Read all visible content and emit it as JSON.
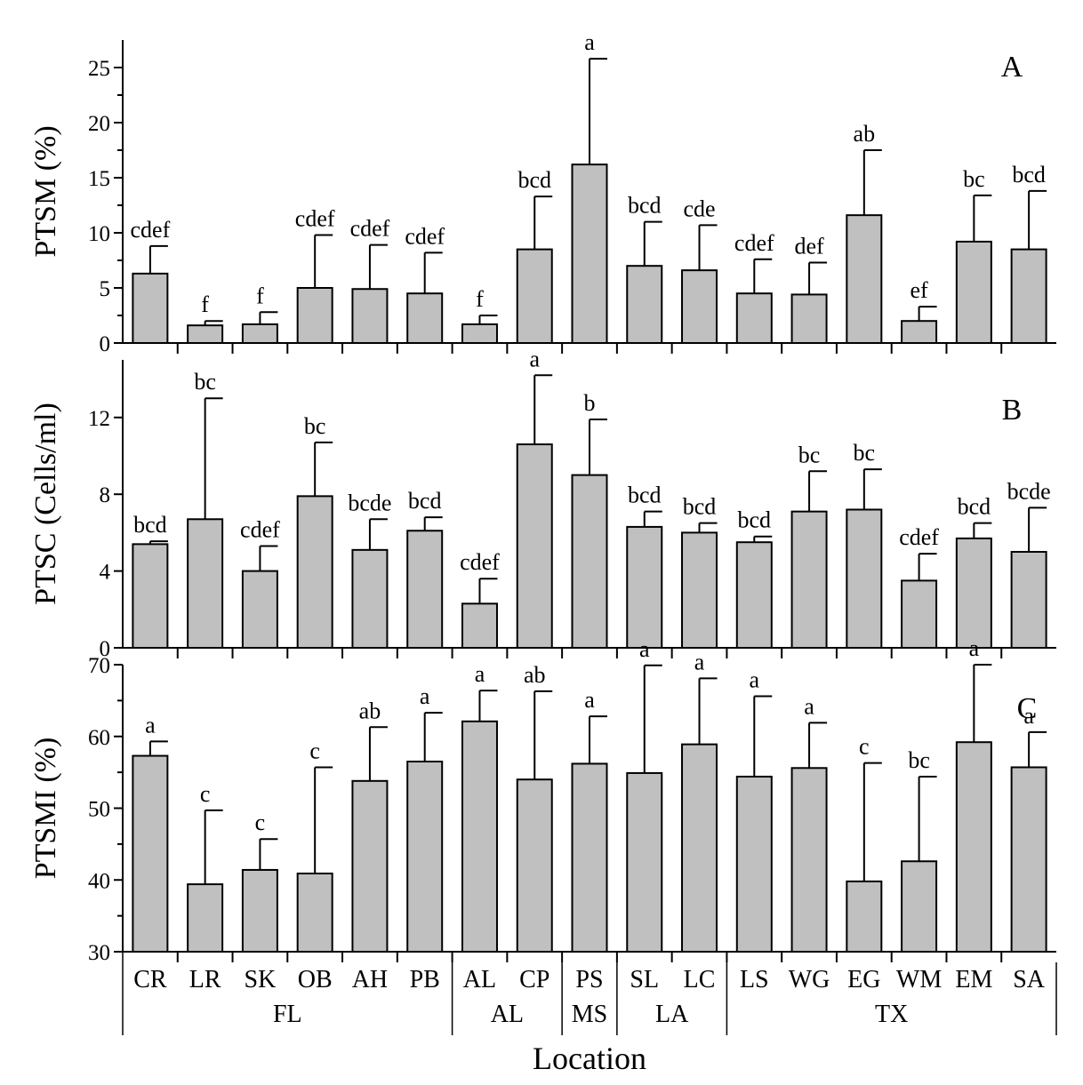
{
  "chart_data": [
    {
      "type": "bar",
      "panel": "A",
      "ylabel": "PTSM (%)",
      "ylim": [
        0,
        27.5
      ],
      "yticks": [
        0,
        5,
        10,
        15,
        20,
        25
      ],
      "categories": [
        "CR",
        "LR",
        "SK",
        "OB",
        "AH",
        "PB",
        "AL",
        "CP",
        "PS",
        "SL",
        "LC",
        "LS",
        "WG",
        "EG",
        "WM",
        "EM",
        "SA"
      ],
      "values": [
        6.3,
        1.6,
        1.7,
        5.0,
        4.9,
        4.5,
        1.7,
        8.5,
        16.2,
        7.0,
        6.6,
        4.5,
        4.4,
        11.6,
        2.0,
        9.2,
        8.5
      ],
      "errors": [
        2.5,
        0.4,
        1.1,
        4.8,
        4.0,
        3.7,
        0.8,
        4.8,
        9.6,
        4.0,
        4.1,
        3.1,
        2.9,
        5.9,
        1.3,
        4.2,
        5.3
      ],
      "significance": [
        "cdef",
        "f",
        "f",
        "cdef",
        "cdef",
        "cdef",
        "f",
        "bcd",
        "a",
        "bcd",
        "cde",
        "cdef",
        "def",
        "ab",
        "ef",
        "bc",
        "bcd"
      ]
    },
    {
      "type": "bar",
      "panel": "B",
      "ylabel": "PTSC (Cells/ml)",
      "ylim": [
        0,
        15
      ],
      "yticks": [
        0,
        4,
        8,
        12
      ],
      "categories": [
        "CR",
        "LR",
        "SK",
        "OB",
        "AH",
        "PB",
        "AL",
        "CP",
        "PS",
        "SL",
        "LC",
        "LS",
        "WG",
        "EG",
        "WM",
        "EM",
        "SA"
      ],
      "values": [
        5.4,
        6.7,
        4.0,
        7.9,
        5.1,
        6.1,
        2.3,
        10.6,
        9.0,
        6.3,
        6.0,
        5.5,
        7.1,
        7.2,
        3.5,
        5.7,
        5.0
      ],
      "errors": [
        0.15,
        6.3,
        1.3,
        2.8,
        1.6,
        0.7,
        1.3,
        3.6,
        2.9,
        0.8,
        0.5,
        0.3,
        2.1,
        2.1,
        1.4,
        0.8,
        2.3
      ],
      "significance": [
        "bcd",
        "bc",
        "cdef",
        "bc",
        "bcde",
        "bcd",
        "cdef",
        "a",
        "b",
        "bcd",
        "bcd",
        "bcd",
        "bc",
        "bc",
        "cdef",
        "bcd",
        "bcde"
      ]
    },
    {
      "type": "bar",
      "panel": "C",
      "ylabel": "PTSMI (%)",
      "ylim": [
        30,
        70
      ],
      "yticks": [
        30,
        40,
        50,
        60,
        70
      ],
      "categories": [
        "CR",
        "LR",
        "SK",
        "OB",
        "AH",
        "PB",
        "AL",
        "CP",
        "PS",
        "SL",
        "LC",
        "LS",
        "WG",
        "EG",
        "WM",
        "EM",
        "SA"
      ],
      "values": [
        57.3,
        39.4,
        41.4,
        40.9,
        53.8,
        56.5,
        62.1,
        54.0,
        56.2,
        54.9,
        58.9,
        54.4,
        55.6,
        39.8,
        42.6,
        59.2,
        55.7
      ],
      "errors": [
        2.0,
        10.3,
        4.3,
        14.8,
        7.5,
        6.8,
        4.3,
        12.3,
        6.6,
        15.0,
        9.2,
        11.2,
        6.3,
        16.5,
        11.8,
        10.8,
        4.9
      ],
      "significance": [
        "a",
        "c",
        "c",
        "c",
        "ab",
        "a",
        "a",
        "ab",
        "a",
        "a",
        "a",
        "a",
        "a",
        "c",
        "bc",
        "a",
        "a"
      ]
    }
  ],
  "x_axis": {
    "title": "Location",
    "categories": [
      "CR",
      "LR",
      "SK",
      "OB",
      "AH",
      "PB",
      "AL",
      "CP",
      "PS",
      "SL",
      "LC",
      "LS",
      "WG",
      "EG",
      "WM",
      "EM",
      "SA"
    ],
    "groups": [
      {
        "label": "FL",
        "from": 0,
        "to": 6
      },
      {
        "label": "AL",
        "from": 6,
        "to": 8
      },
      {
        "label": "MS",
        "from": 8,
        "to": 9
      },
      {
        "label": "LA",
        "from": 9,
        "to": 11
      },
      {
        "label": "TX",
        "from": 11,
        "to": 17
      }
    ]
  },
  "colors": {
    "bar_fill": "#c0c0c0",
    "stroke": "#000000"
  }
}
